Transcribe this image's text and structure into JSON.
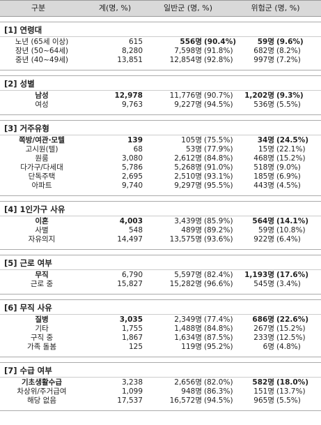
{
  "table": {
    "header": [
      "구분",
      "계(명, %)",
      "일반군 (명, %)",
      "위험군 (명, %)"
    ],
    "sections": [
      {
        "title": "[1] 연령대",
        "rows": [
          {
            "cells": [
              "노년 (65세 이상)",
              "615",
              "556명",
              "(90.4%)",
              "59명",
              "(9.6%)"
            ],
            "bold": [
              2,
              3,
              4,
              5
            ]
          },
          {
            "cells": [
              "장년 (50~64세)",
              "8,280",
              "7,598명",
              "(91.8%)",
              "682명",
              "(8.2%)"
            ],
            "bold": []
          },
          {
            "cells": [
              "중년 (40~49세)",
              "13,851",
              "12,854명",
              "(92.8%)",
              "997명",
              "(7.2%)"
            ],
            "bold": []
          }
        ]
      },
      {
        "title": "[2] 성별",
        "rows": [
          {
            "cells": [
              "남성",
              "12,978",
              "11,776명",
              "(90.7%)",
              "1,202명",
              "(9.3%)"
            ],
            "bold": [
              0,
              1,
              4,
              5
            ]
          },
          {
            "cells": [
              "여성",
              "9,763",
              "9,227명",
              "(94.5%)",
              "536명",
              "(5.5%)"
            ],
            "bold": []
          }
        ]
      },
      {
        "title": "[3] 거주유형",
        "rows": [
          {
            "cells": [
              "쪽방/여관·모텔",
              "139",
              "105명",
              "(75.5%)",
              "34명",
              "(24.5%)"
            ],
            "bold": [
              0,
              1,
              4,
              5
            ]
          },
          {
            "cells": [
              "고시원(텔)",
              "68",
              "53명",
              "(77.9%)",
              "15명",
              "(22.1%)"
            ],
            "bold": []
          },
          {
            "cells": [
              "원룸",
              "3,080",
              "2,612명",
              "(84.8%)",
              "468명",
              "(15.2%)"
            ],
            "bold": []
          },
          {
            "cells": [
              "다가구/다세대",
              "5,786",
              "5,268명",
              "(91.0%)",
              "518명",
              "(9.0%)"
            ],
            "bold": []
          },
          {
            "cells": [
              "단독주택",
              "2,695",
              "2,510명",
              "(93.1%)",
              "185명",
              "(6.9%)"
            ],
            "bold": []
          },
          {
            "cells": [
              "아파트",
              "9,740",
              "9,297명",
              "(95.5%)",
              "443명",
              "(4.5%)"
            ],
            "bold": []
          }
        ]
      },
      {
        "title": "[4] 1인가구 사유",
        "rows": [
          {
            "cells": [
              "이혼",
              "4,003",
              "3,439명",
              "(85.9%)",
              "564명",
              "(14.1%)"
            ],
            "bold": [
              0,
              1,
              4,
              5
            ]
          },
          {
            "cells": [
              "사별",
              "548",
              "489명",
              "(89.2%)",
              "59명",
              "(10.8%)"
            ],
            "bold": []
          },
          {
            "cells": [
              "자유의지",
              "14,497",
              "13,575명",
              "(93.6%)",
              "922명",
              "(6.4%)"
            ],
            "bold": []
          }
        ]
      },
      {
        "title": "[5] 근로 여부",
        "rows": [
          {
            "cells": [
              "무직",
              "6,790",
              "5,597명",
              "(82.4%)",
              "1,193명",
              "(17.6%)"
            ],
            "bold": [
              0,
              4,
              5
            ]
          },
          {
            "cells": [
              "근로 중",
              "15,827",
              "15,282명",
              "(96.6%)",
              "545명",
              "(3.4%)"
            ],
            "bold": []
          }
        ]
      },
      {
        "title": "[6] 무직 사유",
        "rows": [
          {
            "cells": [
              "질병",
              "3,035",
              "2,349명",
              "(77.4%)",
              "686명",
              "(22.6%)"
            ],
            "bold": [
              0,
              1,
              4,
              5
            ]
          },
          {
            "cells": [
              "기타",
              "1,755",
              "1,488명",
              "(84.8%)",
              "267명",
              "(15.2%)"
            ],
            "bold": []
          },
          {
            "cells": [
              "구직 중",
              "1,867",
              "1,634명",
              "(87.5%)",
              "233명",
              "(12.5%)"
            ],
            "bold": []
          },
          {
            "cells": [
              "가족 돌봄",
              "125",
              "119명",
              "(95.2%)",
              "6명",
              "(4.8%)"
            ],
            "bold": []
          }
        ]
      },
      {
        "title": "[7] 수급 여부",
        "rows": [
          {
            "cells": [
              "기초생활수급",
              "3,238",
              "2,656명",
              "(82.0%)",
              "582명",
              "(18.0%)"
            ],
            "bold": [
              0,
              4,
              5
            ]
          },
          {
            "cells": [
              "차상위/주거급여",
              "1,099",
              "948명",
              "(86.3%)",
              "151명",
              "(13.7%)"
            ],
            "bold": []
          },
          {
            "cells": [
              "해당 없음",
              "17,537",
              "16,572명",
              "(94.5%)",
              "965명",
              "(5.5%)"
            ],
            "bold": []
          }
        ]
      }
    ]
  }
}
